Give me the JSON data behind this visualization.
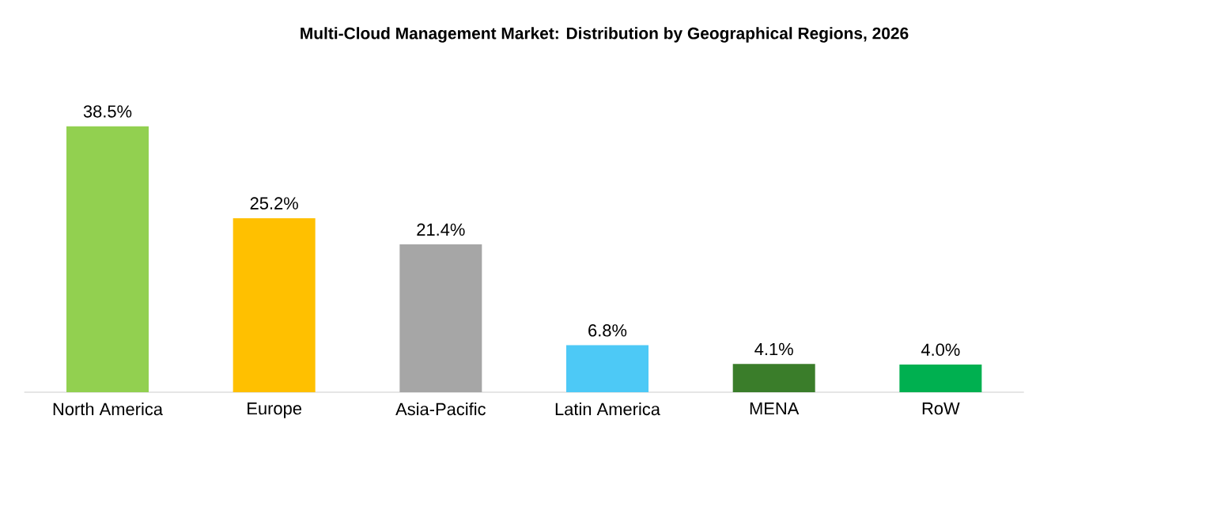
{
  "chart_data": {
    "type": "bar",
    "title": "Multi-Cloud Management Market: Distribution by Geographical Regions, 2026",
    "categories": [
      "North America",
      "Europe",
      "Asia-Pacific",
      "Latin America",
      "MENA",
      "RoW"
    ],
    "values": [
      38.5,
      25.2,
      21.4,
      6.8,
      4.1,
      4.0
    ],
    "value_labels": [
      "38.5%",
      "25.2%",
      "21.4%",
      "6.8%",
      "4.1%",
      "4.0%"
    ],
    "colors": [
      "#92d050",
      "#ffc000",
      "#a6a6a6",
      "#4dc9f6",
      "#3a7d2a",
      "#00b050"
    ]
  }
}
